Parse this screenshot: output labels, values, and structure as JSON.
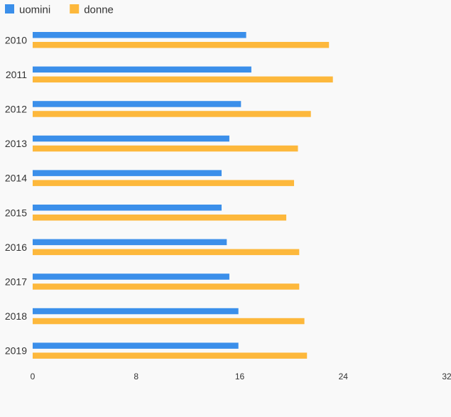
{
  "chart_data": {
    "type": "bar",
    "orientation": "horizontal",
    "title": "",
    "xlabel": "",
    "ylabel": "",
    "categories": [
      "2010",
      "2011",
      "2012",
      "2013",
      "2014",
      "2015",
      "2016",
      "2017",
      "2018",
      "2019"
    ],
    "series": [
      {
        "name": "uomini",
        "color": "#3b8fea",
        "values": [
          16.5,
          16.9,
          16.1,
          15.2,
          14.6,
          14.6,
          15.0,
          15.2,
          15.9,
          15.9
        ]
      },
      {
        "name": "donne",
        "color": "#fdb83c",
        "values": [
          22.9,
          23.2,
          21.5,
          20.5,
          20.2,
          19.6,
          20.6,
          20.6,
          21.0,
          21.2
        ]
      }
    ],
    "xlim": [
      0,
      32
    ],
    "xticks": [
      "0",
      "8",
      "16",
      "24",
      "32"
    ],
    "grid": false,
    "legend_position": "top-left"
  }
}
